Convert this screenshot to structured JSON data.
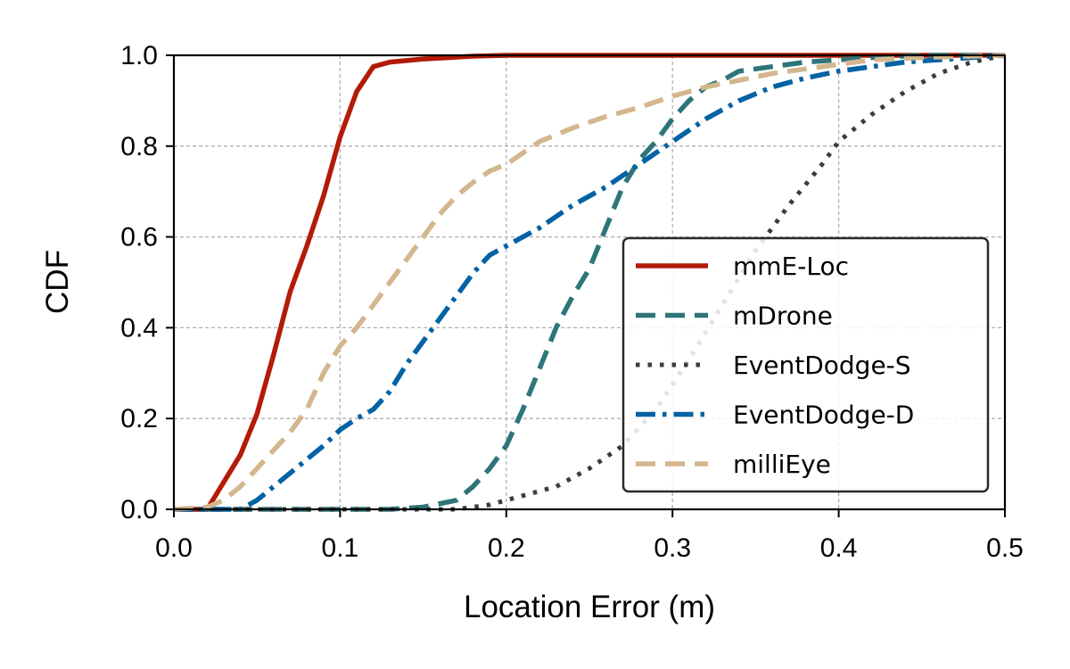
{
  "chart_data": {
    "type": "line",
    "title": "",
    "xlabel": "Location Error (m)",
    "ylabel": "CDF",
    "xlim": [
      0,
      0.5
    ],
    "ylim": [
      0,
      1
    ],
    "xticks": [
      0,
      0.1,
      0.2,
      0.3,
      0.4,
      0.5
    ],
    "yticks": [
      0,
      0.2,
      0.4,
      0.6,
      0.8,
      1.0
    ],
    "xtick_labels": [
      "0.0",
      "0.1",
      "0.2",
      "0.3",
      "0.4",
      "0.5"
    ],
    "ytick_labels": [
      "0.0",
      "0.2",
      "0.4",
      "0.6",
      "0.8",
      "1.0"
    ],
    "grid": true,
    "legend_position": "center-right",
    "series": [
      {
        "name": "mmE-Loc",
        "color": "#b31b06",
        "style": "solid",
        "x": [
          0.0,
          0.02,
          0.03,
          0.04,
          0.05,
          0.06,
          0.07,
          0.08,
          0.09,
          0.1,
          0.11,
          0.12,
          0.13,
          0.15,
          0.18,
          0.2,
          0.5
        ],
        "y": [
          0.0,
          0.0,
          0.06,
          0.12,
          0.21,
          0.34,
          0.48,
          0.58,
          0.69,
          0.82,
          0.92,
          0.975,
          0.985,
          0.992,
          0.998,
          1.0,
          1.0
        ]
      },
      {
        "name": "mDrone",
        "color": "#2e7578",
        "style": "dashed",
        "x": [
          0.0,
          0.13,
          0.15,
          0.17,
          0.18,
          0.19,
          0.2,
          0.21,
          0.22,
          0.23,
          0.24,
          0.25,
          0.26,
          0.27,
          0.28,
          0.29,
          0.3,
          0.31,
          0.32,
          0.33,
          0.34,
          0.36,
          0.38,
          0.4,
          0.42,
          0.45,
          0.5
        ],
        "y": [
          0.0,
          0.0,
          0.005,
          0.02,
          0.05,
          0.09,
          0.14,
          0.22,
          0.31,
          0.4,
          0.47,
          0.53,
          0.62,
          0.71,
          0.77,
          0.81,
          0.86,
          0.9,
          0.93,
          0.945,
          0.965,
          0.975,
          0.985,
          0.99,
          0.995,
          1.0,
          1.0
        ]
      },
      {
        "name": "EventDodge-S",
        "color": "#3c3c3c",
        "style": "dotted",
        "x": [
          0.0,
          0.17,
          0.19,
          0.21,
          0.23,
          0.25,
          0.27,
          0.29,
          0.31,
          0.33,
          0.35,
          0.37,
          0.39,
          0.4,
          0.42,
          0.44,
          0.46,
          0.48,
          0.5
        ],
        "y": [
          0.0,
          0.0,
          0.01,
          0.03,
          0.05,
          0.09,
          0.14,
          0.22,
          0.33,
          0.45,
          0.57,
          0.67,
          0.76,
          0.81,
          0.87,
          0.92,
          0.96,
          0.985,
          1.0
        ]
      },
      {
        "name": "EventDodge-D",
        "color": "#0363a3",
        "style": "dashdot",
        "x": [
          0.0,
          0.04,
          0.05,
          0.06,
          0.07,
          0.08,
          0.09,
          0.1,
          0.11,
          0.12,
          0.13,
          0.14,
          0.15,
          0.16,
          0.17,
          0.18,
          0.19,
          0.2,
          0.22,
          0.24,
          0.26,
          0.28,
          0.3,
          0.32,
          0.34,
          0.36,
          0.38,
          0.4,
          0.42,
          0.44,
          0.46,
          0.48,
          0.5
        ],
        "y": [
          0.0,
          0.0,
          0.02,
          0.05,
          0.08,
          0.11,
          0.14,
          0.175,
          0.2,
          0.22,
          0.26,
          0.32,
          0.37,
          0.42,
          0.47,
          0.52,
          0.56,
          0.58,
          0.62,
          0.67,
          0.71,
          0.76,
          0.81,
          0.86,
          0.9,
          0.93,
          0.95,
          0.965,
          0.975,
          0.985,
          0.99,
          0.995,
          1.0
        ]
      },
      {
        "name": "milliEye",
        "color": "#d4b68e",
        "style": "dashed",
        "x": [
          0.0,
          0.02,
          0.03,
          0.04,
          0.05,
          0.06,
          0.07,
          0.08,
          0.09,
          0.1,
          0.11,
          0.12,
          0.13,
          0.14,
          0.15,
          0.16,
          0.17,
          0.18,
          0.19,
          0.2,
          0.22,
          0.24,
          0.26,
          0.28,
          0.3,
          0.32,
          0.34,
          0.36,
          0.38,
          0.4,
          0.42,
          0.45,
          0.5
        ],
        "y": [
          0.0,
          0.005,
          0.02,
          0.05,
          0.09,
          0.13,
          0.17,
          0.22,
          0.3,
          0.36,
          0.4,
          0.45,
          0.5,
          0.55,
          0.6,
          0.65,
          0.69,
          0.72,
          0.745,
          0.76,
          0.81,
          0.84,
          0.865,
          0.885,
          0.91,
          0.93,
          0.945,
          0.96,
          0.97,
          0.98,
          0.99,
          0.995,
          1.0
        ]
      }
    ]
  }
}
